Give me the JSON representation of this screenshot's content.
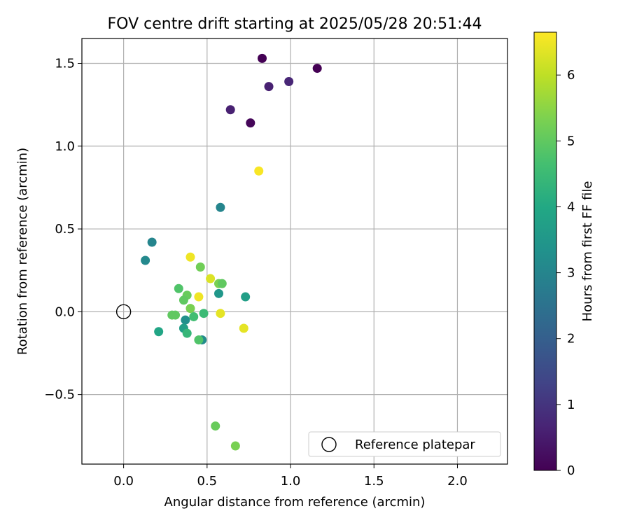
{
  "chart_data": {
    "type": "scatter",
    "title": "FOV centre drift starting at 2025/05/28 20:51:44",
    "xlabel": "Angular distance from reference (arcmin)",
    "ylabel": "Rotation from reference (arcmin)",
    "xlim": [
      -0.25,
      2.3
    ],
    "ylim": [
      -0.92,
      1.65
    ],
    "xticks": [
      0.0,
      0.5,
      1.0,
      1.5,
      2.0
    ],
    "xtick_labels": [
      "0.0",
      "0.5",
      "1.0",
      "1.5",
      "2.0"
    ],
    "yticks": [
      -0.5,
      0.0,
      0.5,
      1.0,
      1.5
    ],
    "ytick_labels": [
      "−0.5",
      "0.0",
      "0.5",
      "1.0",
      "1.5"
    ],
    "grid": true,
    "colormap": "viridis",
    "colorbar": {
      "label": "Hours from first FF file",
      "range": [
        0,
        6.65
      ],
      "ticks": [
        0,
        1,
        2,
        3,
        4,
        5,
        6
      ],
      "tick_labels": [
        "0",
        "1",
        "2",
        "3",
        "4",
        "5",
        "6"
      ]
    },
    "legend": {
      "placement": "lower-right",
      "entries": [
        {
          "label": "Reference platepar",
          "marker": "open-circle"
        }
      ]
    },
    "reference_point": {
      "x": 0.0,
      "y": 0.0
    },
    "points": [
      {
        "x": 0.83,
        "y": 1.53,
        "hours": 0.0
      },
      {
        "x": 1.16,
        "y": 1.47,
        "hours": 0.0
      },
      {
        "x": 0.87,
        "y": 1.36,
        "hours": 0.6
      },
      {
        "x": 0.99,
        "y": 1.39,
        "hours": 0.7
      },
      {
        "x": 0.64,
        "y": 1.22,
        "hours": 0.6
      },
      {
        "x": 0.76,
        "y": 1.14,
        "hours": 0.1
      },
      {
        "x": 0.81,
        "y": 0.85,
        "hours": 6.6
      },
      {
        "x": 0.58,
        "y": 0.63,
        "hours": 3.0
      },
      {
        "x": 0.17,
        "y": 0.42,
        "hours": 3.0
      },
      {
        "x": 0.13,
        "y": 0.31,
        "hours": 3.1
      },
      {
        "x": 0.4,
        "y": 0.33,
        "hours": 6.5
      },
      {
        "x": 0.46,
        "y": 0.27,
        "hours": 5.2
      },
      {
        "x": 0.52,
        "y": 0.2,
        "hours": 6.3
      },
      {
        "x": 0.57,
        "y": 0.17,
        "hours": 5.3
      },
      {
        "x": 0.59,
        "y": 0.17,
        "hours": 5.0
      },
      {
        "x": 0.33,
        "y": 0.14,
        "hours": 4.8
      },
      {
        "x": 0.38,
        "y": 0.1,
        "hours": 5.1
      },
      {
        "x": 0.45,
        "y": 0.09,
        "hours": 6.5
      },
      {
        "x": 0.57,
        "y": 0.11,
        "hours": 3.5
      },
      {
        "x": 0.73,
        "y": 0.09,
        "hours": 3.7
      },
      {
        "x": 0.36,
        "y": 0.07,
        "hours": 5.0
      },
      {
        "x": 0.4,
        "y": 0.02,
        "hours": 5.3
      },
      {
        "x": 0.29,
        "y": -0.02,
        "hours": 5.0
      },
      {
        "x": 0.31,
        "y": -0.02,
        "hours": 5.0
      },
      {
        "x": 0.42,
        "y": -0.03,
        "hours": 4.6
      },
      {
        "x": 0.48,
        "y": -0.01,
        "hours": 4.5
      },
      {
        "x": 0.58,
        "y": -0.01,
        "hours": 6.4
      },
      {
        "x": 0.37,
        "y": -0.05,
        "hours": 3.3
      },
      {
        "x": 0.36,
        "y": -0.1,
        "hours": 3.7
      },
      {
        "x": 0.21,
        "y": -0.12,
        "hours": 3.9
      },
      {
        "x": 0.38,
        "y": -0.13,
        "hours": 4.4
      },
      {
        "x": 0.72,
        "y": -0.1,
        "hours": 6.4
      },
      {
        "x": 0.47,
        "y": -0.17,
        "hours": 3.2
      },
      {
        "x": 0.45,
        "y": -0.17,
        "hours": 4.8
      },
      {
        "x": 0.55,
        "y": -0.69,
        "hours": 5.1
      },
      {
        "x": 0.67,
        "y": -0.81,
        "hours": 5.3
      }
    ]
  }
}
